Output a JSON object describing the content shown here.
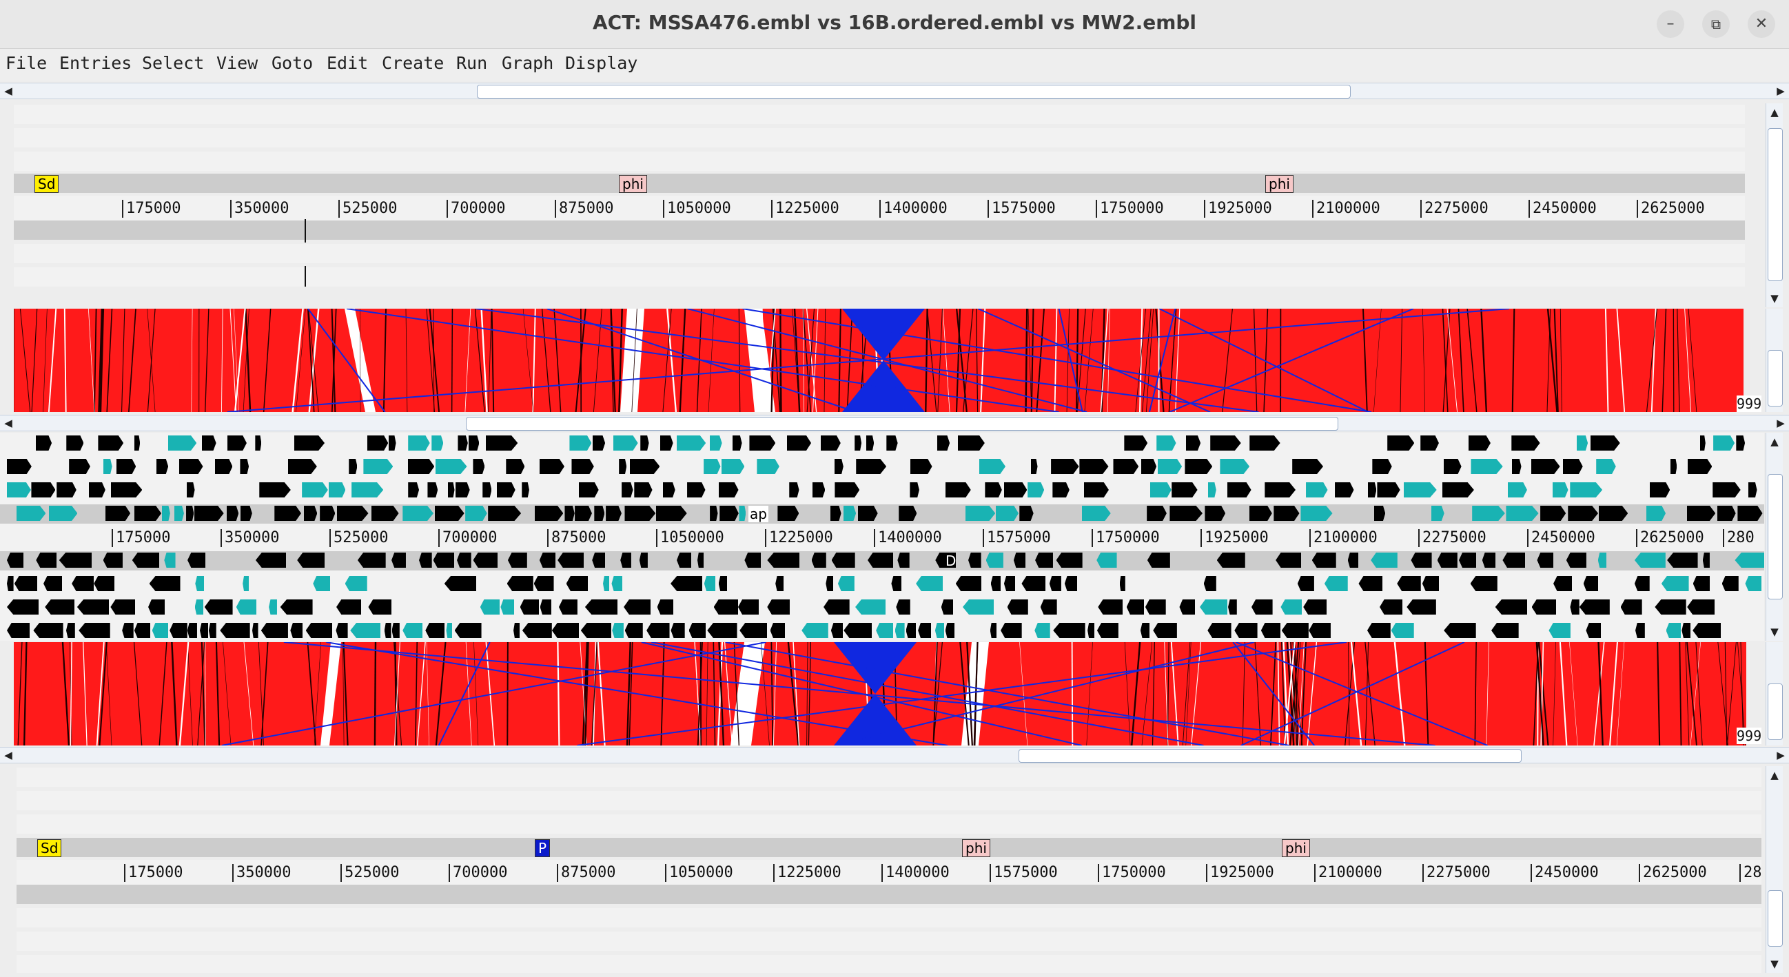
{
  "window": {
    "title": "ACT: MSSA476.embl vs 16B.ordered.embl vs MW2.embl",
    "minimize": "–",
    "maximize": "⧉",
    "close": "✕"
  },
  "menu": [
    {
      "label": "File"
    },
    {
      "label": "Entries"
    },
    {
      "label": "Select"
    },
    {
      "label": "View"
    },
    {
      "label": "Goto"
    },
    {
      "label": "Edit"
    },
    {
      "label": "Create"
    },
    {
      "label": "Run"
    },
    {
      "label": "Graph"
    },
    {
      "label": "Display"
    }
  ],
  "top_sequence": {
    "features": [
      {
        "label": "Sd"
      },
      {
        "label": "phi"
      },
      {
        "label": "phi"
      }
    ],
    "ruler_labels": [
      "175000",
      "350000",
      "525000",
      "700000",
      "875000",
      "1050000",
      "1225000",
      "1400000",
      "1575000",
      "1750000",
      "1925000",
      "2100000",
      "2275000",
      "2450000",
      "2625000"
    ]
  },
  "comparison_top": {
    "score_label": "999"
  },
  "middle_sequence": {
    "overlay_text": "ap",
    "marker_text": "D",
    "ruler_labels": [
      "175000",
      "350000",
      "525000",
      "700000",
      "875000",
      "1050000",
      "1225000",
      "1400000",
      "1575000",
      "1750000",
      "1925000",
      "2100000",
      "2275000",
      "2450000",
      "2625000",
      "280"
    ]
  },
  "comparison_bottom": {
    "score_label": "999"
  },
  "bottom_sequence": {
    "features": [
      {
        "label": "Sd"
      },
      {
        "label": "P"
      },
      {
        "label": "phi"
      },
      {
        "label": "phi"
      }
    ],
    "ruler_labels": [
      "175000",
      "350000",
      "525000",
      "700000",
      "875000",
      "1050000",
      "1225000",
      "1400000",
      "1575000",
      "1750000",
      "1925000",
      "2100000",
      "2275000",
      "2450000",
      "2625000",
      "28"
    ]
  },
  "colors": {
    "match_forward": "#ff1a1a",
    "match_inverted": "#1028e0",
    "feature_yellow": "#ffee00",
    "feature_pink": "#f6c8c8",
    "feature_blue": "#0a1acb"
  }
}
